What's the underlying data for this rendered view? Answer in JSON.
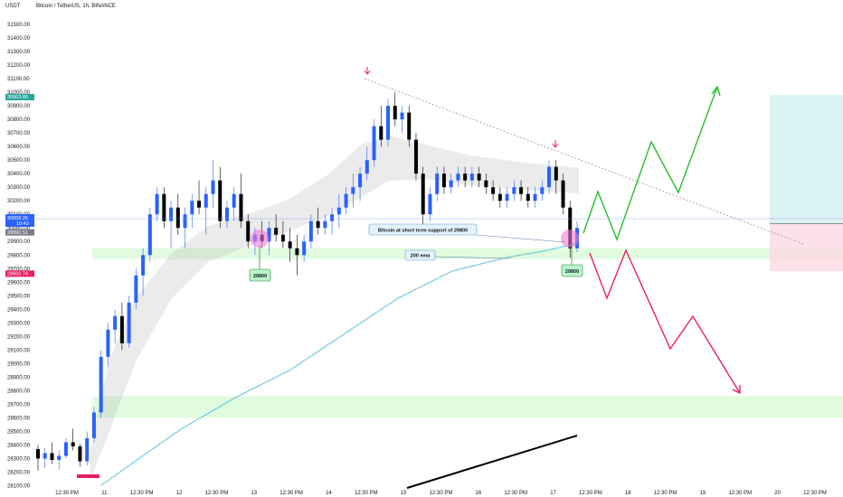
{
  "header": {
    "currency": "USDT",
    "title": "Bitcoin / TetherUS, 1h, BINANCE"
  },
  "colors": {
    "bull": "#2962ff",
    "bear": "#000000",
    "ema": "#2bb0d6",
    "zone": "#c8f7c5",
    "up_path": "#22c02a",
    "down_path": "#e91e63",
    "trendline": "#888888",
    "highlight": "#f07ad8"
  },
  "chart_data": {
    "type": "candlestick",
    "title": "Bitcoin / TetherUS, 1h, BINANCE",
    "ylim": [
      28080,
      31520
    ],
    "y_ticks": [
      28100,
      28200,
      28300,
      28400,
      28500,
      28600,
      28700,
      28800,
      28900,
      29000,
      29100,
      29200,
      29300,
      29400,
      29500,
      29600,
      29700,
      29800,
      29900,
      30000,
      30100,
      30200,
      30300,
      30400,
      30500,
      30600,
      30700,
      30800,
      30900,
      31000,
      31100,
      31200,
      31300,
      31400,
      31500
    ],
    "x_labels": [
      "12:30 PM",
      "11",
      "12:30 PM",
      "12",
      "12:30 PM",
      "13",
      "12:30 PM",
      "14",
      "12:30 PM",
      "15",
      "12:30 PM",
      "16",
      "12:30 PM",
      "17",
      "12:30 PM",
      "18",
      "12:30 PM",
      "19",
      "12:30 PM",
      "20",
      "12:30 PM"
    ],
    "candles": [
      [
        28370,
        28400,
        28210,
        28300
      ],
      [
        28300,
        28380,
        28230,
        28340
      ],
      [
        28340,
        28420,
        28260,
        28290
      ],
      [
        28290,
        28360,
        28220,
        28320
      ],
      [
        28320,
        28450,
        28300,
        28420
      ],
      [
        28420,
        28520,
        28360,
        28390
      ],
      [
        28390,
        28410,
        28240,
        28280
      ],
      [
        28280,
        28500,
        28250,
        28450
      ],
      [
        28450,
        28680,
        28420,
        28640
      ],
      [
        28640,
        29100,
        28600,
        29050
      ],
      [
        29050,
        29300,
        28980,
        29250
      ],
      [
        29250,
        29400,
        29150,
        29350
      ],
      [
        29350,
        29450,
        29100,
        29150
      ],
      [
        29150,
        29500,
        29120,
        29450
      ],
      [
        29450,
        29700,
        29400,
        29650
      ],
      [
        29650,
        29850,
        29500,
        29800
      ],
      [
        29800,
        30150,
        29750,
        30100
      ],
      [
        30100,
        30300,
        30050,
        30250
      ],
      [
        30250,
        30300,
        30000,
        30050
      ],
      [
        30050,
        30200,
        29850,
        30150
      ],
      [
        30150,
        30250,
        29950,
        30000
      ],
      [
        30000,
        30150,
        29850,
        30100
      ],
      [
        30100,
        30250,
        30000,
        30200
      ],
      [
        30200,
        30350,
        30100,
        30150
      ],
      [
        30150,
        30300,
        29950,
        30250
      ],
      [
        30250,
        30500,
        30150,
        30350
      ],
      [
        30350,
        30450,
        30000,
        30050
      ],
      [
        30050,
        30200,
        30000,
        30150
      ],
      [
        30150,
        30300,
        30050,
        30250
      ],
      [
        30250,
        30400,
        30000,
        30050
      ],
      [
        30050,
        30100,
        29850,
        29900
      ],
      [
        29900,
        30000,
        29800,
        29950
      ],
      [
        29950,
        30050,
        29850,
        29900
      ],
      [
        29900,
        30050,
        29800,
        30000
      ],
      [
        30000,
        30100,
        29900,
        29950
      ],
      [
        29950,
        30050,
        29850,
        29900
      ],
      [
        29900,
        30000,
        29750,
        29850
      ],
      [
        29850,
        29950,
        29650,
        29800
      ],
      [
        29800,
        29950,
        29750,
        29900
      ],
      [
        29900,
        30100,
        29850,
        30050
      ],
      [
        30050,
        30150,
        29950,
        30000
      ],
      [
        30000,
        30100,
        29950,
        30050
      ],
      [
        30050,
        30150,
        29950,
        30100
      ],
      [
        30100,
        30250,
        30000,
        30150
      ],
      [
        30150,
        30300,
        30100,
        30250
      ],
      [
        30250,
        30400,
        30150,
        30300
      ],
      [
        30300,
        30450,
        30200,
        30400
      ],
      [
        30400,
        30600,
        30350,
        30500
      ],
      [
        30500,
        30800,
        30450,
        30750
      ],
      [
        30750,
        30900,
        30600,
        30650
      ],
      [
        30650,
        30950,
        30600,
        30900
      ],
      [
        30900,
        31000,
        30750,
        30800
      ],
      [
        30800,
        30900,
        30700,
        30850
      ],
      [
        30850,
        30900,
        30600,
        30650
      ],
      [
        30650,
        30700,
        30350,
        30400
      ],
      [
        30400,
        30450,
        30000,
        30100
      ],
      [
        30100,
        30300,
        30050,
        30250
      ],
      [
        30250,
        30450,
        30200,
        30400
      ],
      [
        30400,
        30450,
        30250,
        30300
      ],
      [
        30300,
        30400,
        30250,
        30350
      ],
      [
        30350,
        30450,
        30300,
        30400
      ],
      [
        30400,
        30450,
        30300,
        30350
      ],
      [
        30350,
        30450,
        30300,
        30400
      ],
      [
        30400,
        30450,
        30300,
        30350
      ],
      [
        30350,
        30400,
        30250,
        30300
      ],
      [
        30300,
        30350,
        30200,
        30250
      ],
      [
        30250,
        30300,
        30150,
        30200
      ],
      [
        30200,
        30300,
        30150,
        30250
      ],
      [
        30250,
        30350,
        30200,
        30300
      ],
      [
        30300,
        30350,
        30200,
        30250
      ],
      [
        30250,
        30300,
        30150,
        30200
      ],
      [
        30200,
        30300,
        30150,
        30250
      ],
      [
        30250,
        30350,
        30200,
        30300
      ],
      [
        30300,
        30500,
        30250,
        30450
      ],
      [
        30450,
        30500,
        30250,
        30350
      ],
      [
        30350,
        30400,
        30100,
        30150
      ],
      [
        30150,
        30200,
        29780,
        29850
      ],
      [
        29850,
        30050,
        29820,
        30000
      ]
    ],
    "ema_label": "200 ema",
    "support_label": "Bitcoin at short term support of 29800",
    "support_callouts": [
      "29800",
      "29800"
    ],
    "price_labels": {
      "top_green": "30963.80",
      "current": "30068.26",
      "countdown": "10:43",
      "gray": "29990.51",
      "pink": "29662.74"
    },
    "zones": [
      [
        29770,
        29850
      ],
      [
        28600,
        28760
      ]
    ],
    "target_box": [
      29680,
      30980
    ]
  }
}
